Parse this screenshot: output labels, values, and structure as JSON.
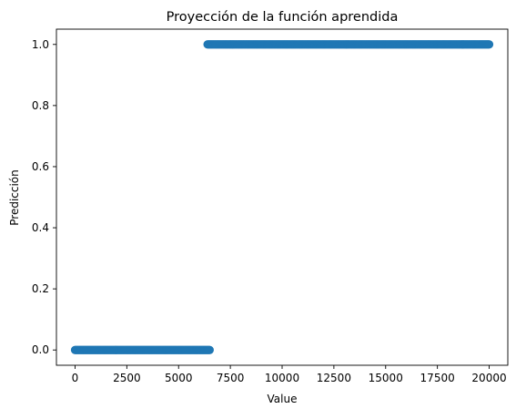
{
  "chart_data": {
    "type": "scatter",
    "title": "Proyección de la función aprendida",
    "xlabel": "Value",
    "ylabel": "Predicción",
    "xlim": [
      -900,
      20900
    ],
    "ylim": [
      -0.05,
      1.05
    ],
    "xticks": [
      0,
      2500,
      5000,
      7500,
      10000,
      12500,
      15000,
      17500,
      20000
    ],
    "xtick_labels": [
      "0",
      "2500",
      "5000",
      "7500",
      "10000",
      "12500",
      "15000",
      "17500",
      "20000"
    ],
    "yticks": [
      0.0,
      0.2,
      0.4,
      0.6,
      0.8,
      1.0
    ],
    "ytick_labels": [
      "0.0",
      "0.2",
      "0.4",
      "0.6",
      "0.8",
      "1.0"
    ],
    "grid": false,
    "legend": "none",
    "color": "#1f77b4",
    "series": [
      {
        "segments": [
          {
            "x_start": 0,
            "x_end": 6500,
            "step": 50,
            "y": 0.0
          },
          {
            "x_start": 6400,
            "x_end": 20000,
            "step": 50,
            "y": 1.0
          }
        ]
      }
    ]
  }
}
